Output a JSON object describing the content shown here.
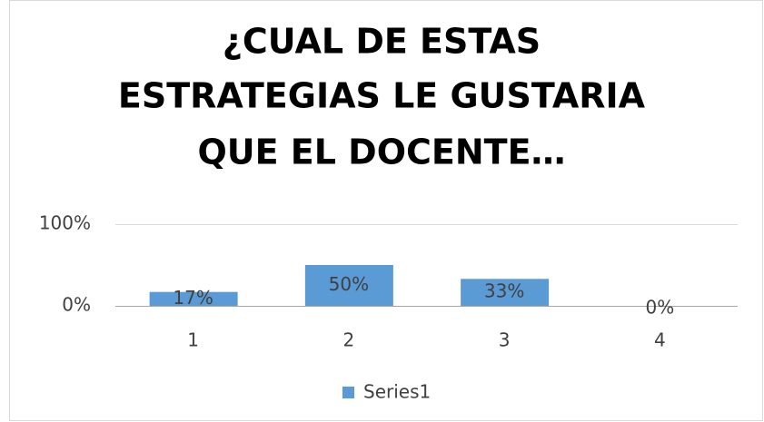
{
  "chart_data": {
    "type": "bar",
    "title": [
      "¿CUAL DE ESTAS",
      "ESTRATEGIAS LE GUSTARIA",
      "QUE EL DOCENTE…"
    ],
    "categories": [
      "1",
      "2",
      "3",
      "4"
    ],
    "series": [
      {
        "name": "Series1",
        "color": "#5b9bd5",
        "values": [
          17,
          50,
          33,
          0
        ],
        "value_labels": [
          "17%",
          "50%",
          "33%",
          "0%"
        ]
      }
    ],
    "ylim": [
      0,
      100
    ],
    "yticks": [
      {
        "value": 0,
        "label": "0%"
      },
      {
        "value": 100,
        "label": "100%"
      }
    ],
    "grid": true,
    "legend": "bottom"
  }
}
